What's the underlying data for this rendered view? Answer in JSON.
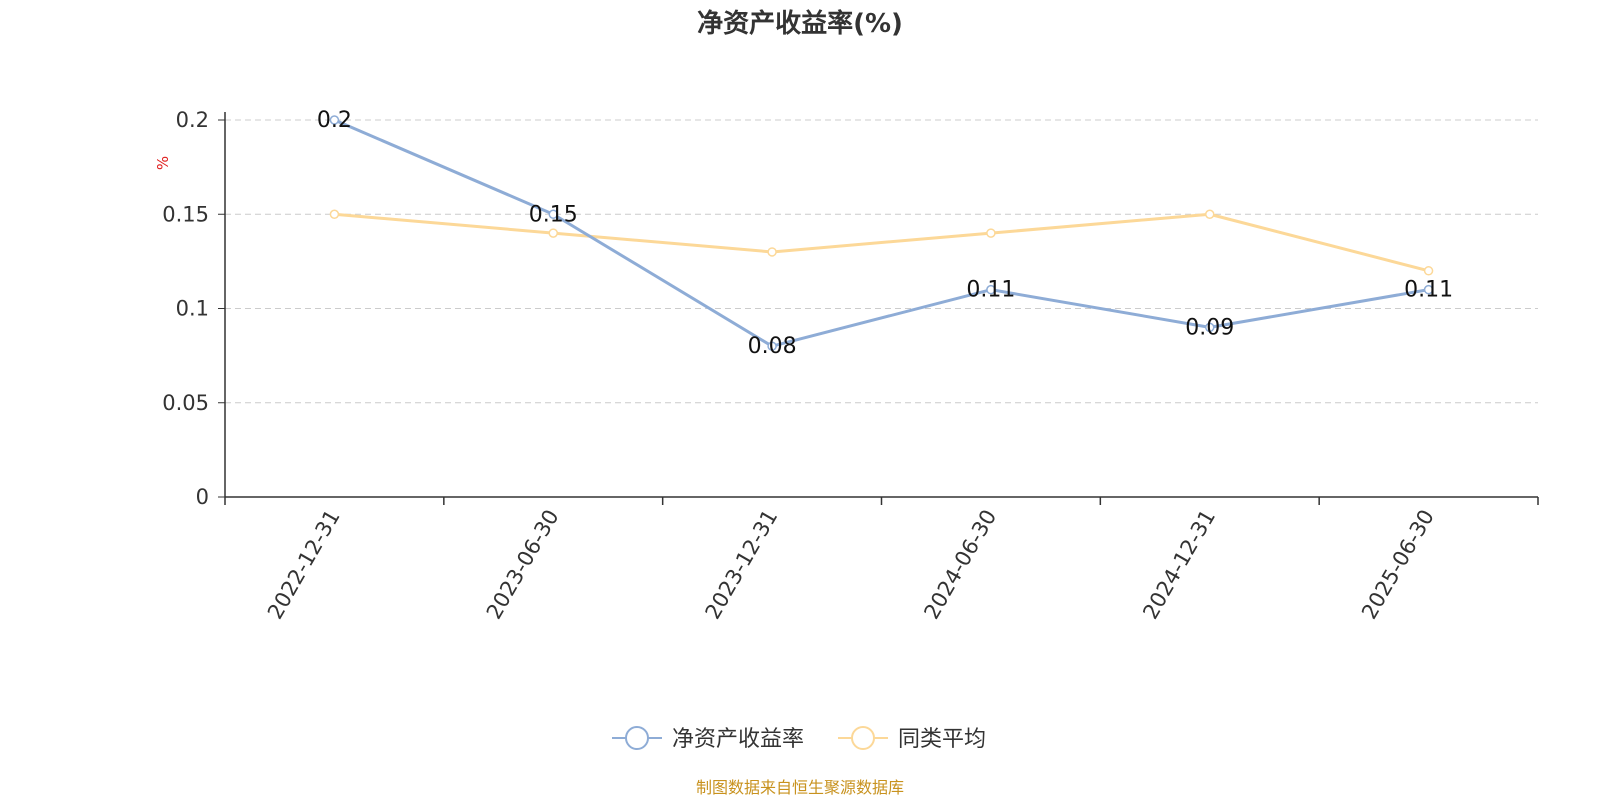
{
  "chart_data": {
    "type": "line",
    "title": "净资产收益率(%)",
    "ylabel": "%",
    "xlabel": "",
    "categories": [
      "2022-12-31",
      "2023-06-30",
      "2023-12-31",
      "2024-06-30",
      "2024-12-31",
      "2025-06-30"
    ],
    "ylim": [
      0,
      0.2
    ],
    "yticks": [
      "0",
      "0.05",
      "0.1",
      "0.15",
      "0.2"
    ],
    "grid": true,
    "legend_position": "bottom-center",
    "series": [
      {
        "name": "净资产收益率",
        "values": [
          0.2,
          0.15,
          0.08,
          0.11,
          0.09,
          0.11
        ],
        "labels": [
          "0.2",
          "0.15",
          "0.08",
          "0.11",
          "0.09",
          "0.11"
        ],
        "color": "#8eacd6"
      },
      {
        "name": "同类平均",
        "values": [
          0.15,
          0.14,
          0.13,
          0.14,
          0.15,
          0.12
        ],
        "color": "#fcd898"
      }
    ]
  },
  "source_note": "制图数据来自恒生聚源数据库"
}
